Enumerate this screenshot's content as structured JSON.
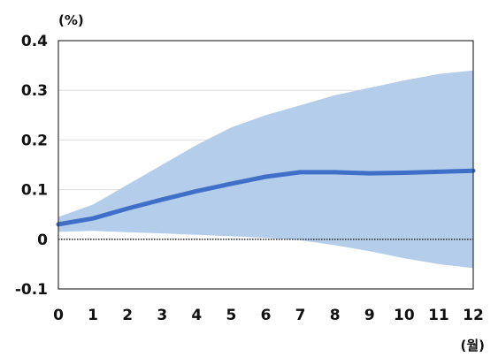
{
  "chart_data": {
    "type": "line",
    "x": [
      0,
      1,
      2,
      3,
      4,
      5,
      6,
      7,
      8,
      9,
      10,
      11,
      12
    ],
    "series": [
      {
        "role": "estimate",
        "values": [
          0.03,
          0.042,
          0.062,
          0.08,
          0.097,
          0.112,
          0.126,
          0.135,
          0.135,
          0.133,
          0.134,
          0.136,
          0.138
        ]
      }
    ],
    "band": {
      "upper": [
        0.045,
        0.07,
        0.11,
        0.15,
        0.19,
        0.225,
        0.25,
        0.27,
        0.29,
        0.305,
        0.32,
        0.333,
        0.34
      ],
      "lower": [
        0.015,
        0.017,
        0.014,
        0.012,
        0.009,
        0.006,
        0.003,
        -0.002,
        -0.012,
        -0.024,
        -0.038,
        -0.05,
        -0.058
      ]
    },
    "xticks": [
      "0",
      "1",
      "2",
      "3",
      "4",
      "5",
      "6",
      "7",
      "8",
      "9",
      "10",
      "11",
      "12"
    ],
    "yticks": [
      "0.4",
      "0.3",
      "0.2",
      "0.1",
      "0",
      "-0.1"
    ],
    "ylim": [
      -0.1,
      0.4
    ],
    "xlim": [
      0,
      12
    ],
    "y_unit": "(%)",
    "x_unit": "(월)",
    "title": "",
    "xlabel": "",
    "ylabel": "",
    "grid": "horizontal",
    "zero_line": "dotted",
    "colors": {
      "line": "#3f6fc6",
      "band": "#b3cdeb",
      "grid": "#dddddd",
      "axis": "#333333",
      "zero": "#333333"
    }
  }
}
